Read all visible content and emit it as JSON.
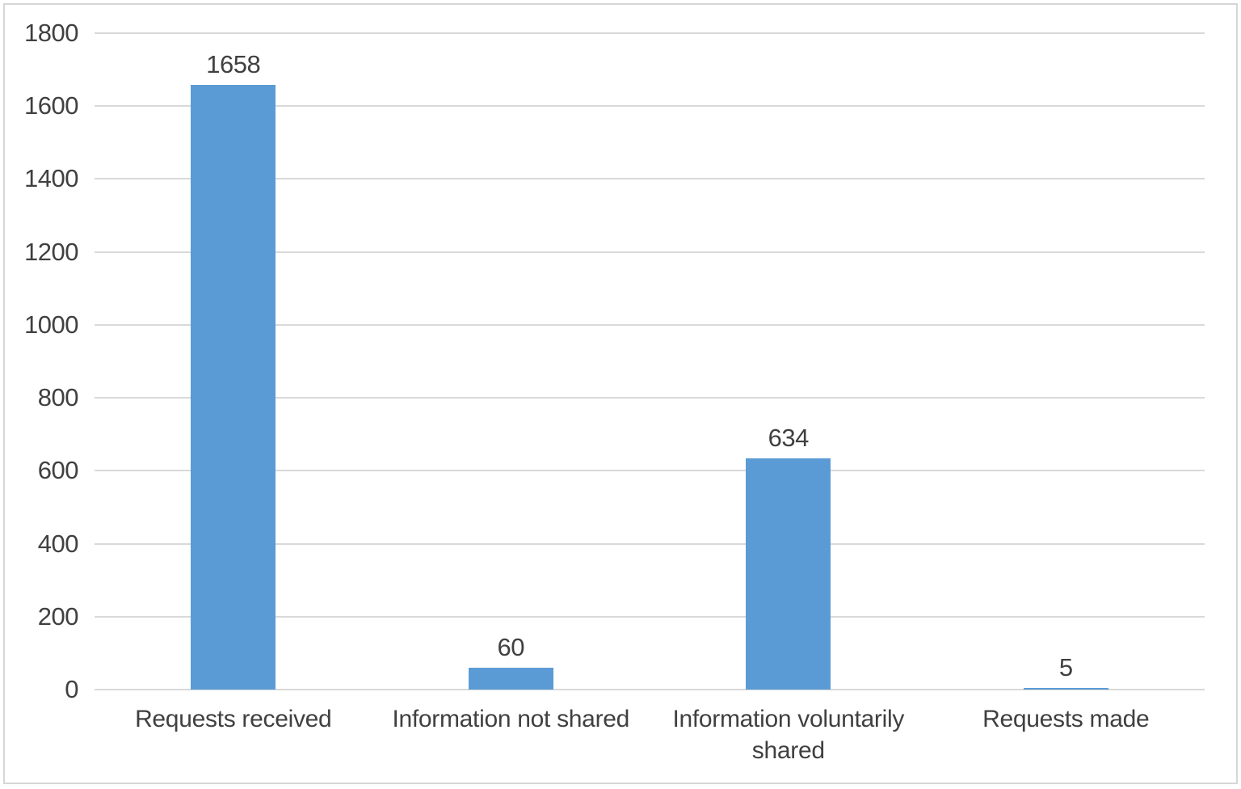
{
  "chart_data": {
    "type": "bar",
    "title": "",
    "xlabel": "",
    "ylabel": "",
    "categories": [
      "Requests received",
      "Information not shared",
      "Information voluntarily shared",
      "Requests made"
    ],
    "values": [
      1658,
      60,
      634,
      5
    ],
    "data_labels": [
      "1658",
      "60",
      "634",
      "5"
    ],
    "ylim": [
      0,
      1800
    ],
    "ytick_interval": 200,
    "yticks": [
      0,
      200,
      400,
      600,
      800,
      1000,
      1200,
      1400,
      1600,
      1800
    ],
    "grid": true,
    "legend": "none",
    "colors": {
      "bar": "#5B9BD5",
      "gridline": "#D9D9D9",
      "axis_line": "#D9D9D9",
      "text": "#404040",
      "border": "#D6D6D6",
      "background": "#FFFFFF"
    }
  }
}
